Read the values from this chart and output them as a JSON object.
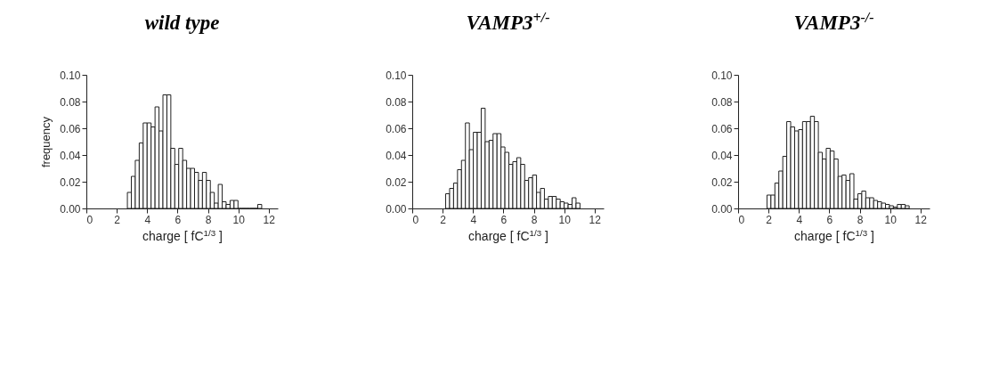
{
  "chart_data": [
    {
      "type": "histogram",
      "title": "wild type",
      "xlabel": "charge [ fC$^{1/3}$ ]",
      "ylabel": "frequency",
      "color": "#ffffff",
      "grid": false,
      "bins": [
        2.7,
        2.96,
        3.22,
        3.48,
        3.74,
        4.0,
        4.26,
        4.52,
        4.78,
        5.04,
        5.3,
        5.56,
        5.82,
        6.08,
        6.34,
        6.6,
        6.86,
        7.12,
        7.38,
        7.64,
        7.9,
        8.16,
        8.42,
        8.68,
        8.94,
        9.2,
        9.46,
        9.72,
        9.98,
        10.24,
        10.5,
        10.76,
        11.02,
        11.28,
        11.54
      ],
      "values": [
        0.012,
        0.024,
        0.036,
        0.049,
        0.064,
        0.064,
        0.061,
        0.076,
        0.058,
        0.085,
        0.085,
        0.045,
        0.033,
        0.045,
        0.036,
        0.03,
        0.03,
        0.027,
        0.021,
        0.027,
        0.021,
        0.012,
        0.004,
        0.018,
        0.005,
        0.003,
        0.006,
        0.006,
        0,
        0,
        0,
        0,
        0,
        0.003
      ],
      "xlim": [
        0,
        12.6
      ],
      "xticks": [
        0,
        2,
        4,
        6,
        8,
        10,
        12
      ],
      "ylim": [
        0,
        0.1
      ],
      "yticks": [
        {
          "value": 0,
          "label": "0.00"
        },
        {
          "value": 0.02,
          "label": "0.02"
        },
        {
          "value": 0.04,
          "label": "0.04"
        },
        {
          "value": 0.06,
          "label": "0.06"
        },
        {
          "value": 0.08,
          "label": "0.08"
        },
        {
          "value": 0.1,
          "label": "0.10"
        }
      ]
    },
    {
      "type": "histogram",
      "title": "VAMP3$^{+/-}$",
      "xlabel": "charge [ fC$^{1/3}$ ]",
      "color": "#ffffff",
      "grid": false,
      "bins": [
        2.2,
        2.46,
        2.72,
        2.98,
        3.24,
        3.5,
        3.76,
        4.02,
        4.28,
        4.54,
        4.8,
        5.06,
        5.32,
        5.58,
        5.84,
        6.1,
        6.36,
        6.62,
        6.88,
        7.14,
        7.4,
        7.66,
        7.92,
        8.18,
        8.44,
        8.7,
        8.96,
        9.22,
        9.48,
        9.74,
        10.0,
        10.26,
        10.52,
        10.78,
        11.04
      ],
      "values": [
        0.011,
        0.015,
        0.019,
        0.029,
        0.036,
        0.064,
        0.044,
        0.057,
        0.057,
        0.075,
        0.05,
        0.051,
        0.056,
        0.056,
        0.046,
        0.042,
        0.033,
        0.035,
        0.038,
        0.033,
        0.021,
        0.023,
        0.025,
        0.012,
        0.015,
        0.007,
        0.009,
        0.009,
        0.007,
        0.005,
        0.004,
        0.003,
        0.008,
        0.004
      ],
      "xlim": [
        0,
        12.6
      ],
      "xticks": [
        0,
        2,
        4,
        6,
        8,
        10,
        12
      ],
      "ylim": [
        0,
        0.1
      ],
      "yticks": [
        {
          "value": 0,
          "label": "0.00"
        },
        {
          "value": 0.02,
          "label": "0.02"
        },
        {
          "value": 0.04,
          "label": "0.04"
        },
        {
          "value": 0.06,
          "label": "0.06"
        },
        {
          "value": 0.08,
          "label": "0.08"
        },
        {
          "value": 0.1,
          "label": "0.10"
        }
      ]
    },
    {
      "type": "histogram",
      "title": "VAMP3$^{-/-}$",
      "xlabel": "charge [ fC$^{1/3}$ ]",
      "color": "#ffffff",
      "grid": false,
      "bins": [
        1.9,
        2.16,
        2.42,
        2.68,
        2.94,
        3.2,
        3.46,
        3.72,
        3.98,
        4.24,
        4.5,
        4.76,
        5.02,
        5.28,
        5.54,
        5.8,
        6.06,
        6.32,
        6.58,
        6.84,
        7.1,
        7.36,
        7.62,
        7.88,
        8.14,
        8.4,
        8.66,
        8.92,
        9.18,
        9.44,
        9.7,
        9.96,
        10.22,
        10.48,
        10.74,
        11.0,
        11.26
      ],
      "values": [
        0.01,
        0.01,
        0.019,
        0.028,
        0.039,
        0.065,
        0.061,
        0.058,
        0.059,
        0.065,
        0.065,
        0.069,
        0.065,
        0.042,
        0.037,
        0.045,
        0.043,
        0.037,
        0.024,
        0.025,
        0.021,
        0.026,
        0.007,
        0.011,
        0.013,
        0.008,
        0.008,
        0.006,
        0.005,
        0.004,
        0.003,
        0.002,
        0.001,
        0.003,
        0.003,
        0.002
      ],
      "xlim": [
        0,
        12.6
      ],
      "xticks": [
        0,
        2,
        4,
        6,
        8,
        10,
        12
      ],
      "ylim": [
        0,
        0.1
      ],
      "yticks": [
        {
          "value": 0,
          "label": "0.00"
        },
        {
          "value": 0.02,
          "label": "0.02"
        },
        {
          "value": 0.04,
          "label": "0.04"
        },
        {
          "value": 0.06,
          "label": "0.06"
        },
        {
          "value": 0.08,
          "label": "0.08"
        },
        {
          "value": 0.1,
          "label": "0.10"
        }
      ]
    }
  ]
}
